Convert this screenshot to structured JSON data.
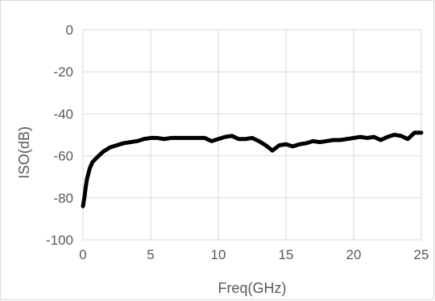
{
  "chart_data": {
    "type": "line",
    "title": "",
    "xlabel": "Freq(GHz)",
    "ylabel": "ISO(dB)",
    "xlim": [
      0,
      25
    ],
    "ylim": [
      -100,
      0
    ],
    "x_ticks": [
      0,
      5,
      10,
      15,
      20,
      25
    ],
    "y_ticks": [
      0,
      -20,
      -40,
      -60,
      -80,
      -100
    ],
    "grid": true,
    "legend": "none",
    "line_color": "#000000",
    "series": [
      {
        "x": [
          0,
          0.1,
          0.2,
          0.3,
          0.5,
          0.7,
          1.0,
          1.5,
          2.0,
          2.5,
          3.0,
          3.5,
          4.0,
          4.5,
          5.0,
          5.5,
          6.0,
          6.5,
          7.0,
          7.5,
          8.0,
          8.5,
          9.0,
          9.5,
          10.0,
          10.5,
          11.0,
          11.5,
          12.0,
          12.5,
          13.0,
          13.5,
          14.0,
          14.5,
          15.0,
          15.5,
          16.0,
          16.5,
          17.0,
          17.5,
          18.0,
          18.5,
          19.0,
          19.5,
          20.0,
          20.5,
          21.0,
          21.5,
          22.0,
          22.5,
          23.0,
          23.5,
          24.0,
          24.5,
          25.0
        ],
        "y": [
          -84,
          -80,
          -75,
          -71,
          -66,
          -63,
          -61,
          -58,
          -56,
          -55,
          -54,
          -53.5,
          -53,
          -52,
          -51.5,
          -51.5,
          -52,
          -51.5,
          -51.5,
          -51.5,
          -51.5,
          -51.5,
          -51.5,
          -53,
          -52,
          -51,
          -50.5,
          -52,
          -52,
          -51.5,
          -53,
          -55,
          -57.5,
          -55,
          -54.5,
          -55.5,
          -54.5,
          -54,
          -53,
          -53.5,
          -53,
          -52.5,
          -52.5,
          -52,
          -51.5,
          -51,
          -51.5,
          -51,
          -52.5,
          -51,
          -50,
          -50.5,
          -52,
          -49,
          -49
        ]
      }
    ]
  }
}
